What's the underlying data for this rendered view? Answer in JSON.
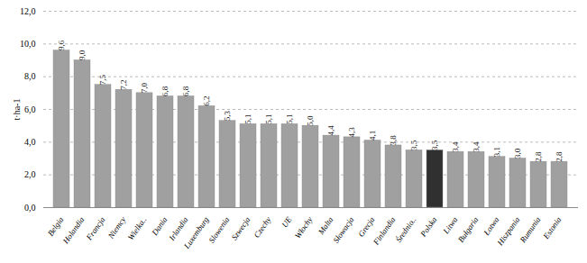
{
  "chart_data": {
    "type": "bar",
    "categories": [
      "Belgia",
      "Holandia",
      "Francja",
      "Niemcy",
      "Wielka..",
      "Dania",
      "Irlandia",
      "Luxemburg",
      "Slowenia",
      "Szwecja",
      "Czechy",
      "UE",
      "Włochy",
      "Malta",
      "Słowacja",
      "Grecja",
      "Finlandia",
      "Średnio..",
      "Polska",
      "Litwa",
      "Bułgaria",
      "Łotwa",
      "Hiszpania",
      "Rumunia",
      "Estonia"
    ],
    "values": [
      9.6,
      9.0,
      7.5,
      7.2,
      7.0,
      6.8,
      6.8,
      6.2,
      5.3,
      5.1,
      5.1,
      5.1,
      5.0,
      4.4,
      4.3,
      4.1,
      3.8,
      3.5,
      3.5,
      3.4,
      3.4,
      3.1,
      3.0,
      2.8,
      2.8
    ],
    "value_labels": [
      "9,6",
      "9,0",
      "7,5",
      "7,2",
      "7,0",
      "6,8",
      "6,8",
      "6,2",
      "5,3",
      "5,1",
      "5,1",
      "5,1",
      "5,0",
      "4,4",
      "4,3",
      "4,1",
      "3,8",
      "3,5",
      "3,5",
      "3,4",
      "3,4",
      "3,1",
      "3,0",
      "2,8",
      "2,8"
    ],
    "colors": [
      "#a0a0a0",
      "#a0a0a0",
      "#a0a0a0",
      "#a0a0a0",
      "#a0a0a0",
      "#a0a0a0",
      "#a0a0a0",
      "#a0a0a0",
      "#a0a0a0",
      "#a0a0a0",
      "#a0a0a0",
      "#a0a0a0",
      "#a0a0a0",
      "#a0a0a0",
      "#a0a0a0",
      "#a0a0a0",
      "#a0a0a0",
      "#a0a0a0",
      "#303030",
      "#a0a0a0",
      "#a0a0a0",
      "#a0a0a0",
      "#a0a0a0",
      "#a0a0a0",
      "#a0a0a0"
    ],
    "ylabel": "t·ha-1",
    "ylim": [
      0,
      12
    ],
    "yticks": [
      {
        "value": 0,
        "label": "0,0"
      },
      {
        "value": 2,
        "label": "2,0"
      },
      {
        "value": 4,
        "label": "4,0"
      },
      {
        "value": 6,
        "label": "6,0"
      },
      {
        "value": 8,
        "label": "8,0"
      },
      {
        "value": 10,
        "label": "10,0"
      },
      {
        "value": 12,
        "label": "12,0"
      }
    ],
    "grid": true,
    "data_labels": true
  }
}
